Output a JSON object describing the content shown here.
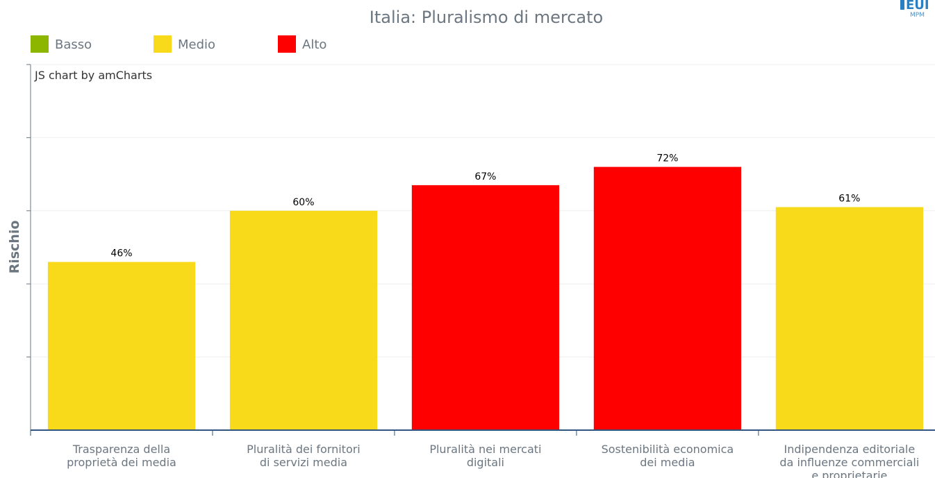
{
  "chart_data": {
    "type": "bar",
    "title": "Italia: Pluralismo di mercato",
    "ylabel": "Rischio",
    "xlabel": "",
    "ylim": [
      0,
      100
    ],
    "grid": true,
    "legend_position": "top-left",
    "legend": [
      {
        "label": "Basso",
        "color": "#8db600"
      },
      {
        "label": "Medio",
        "color": "#f9da1b"
      },
      {
        "label": "Alto",
        "color": "#ff0000"
      }
    ],
    "categories": [
      [
        "Trasparenza della",
        "proprietà dei media"
      ],
      [
        "Pluralità dei fornitori",
        "di servizi media"
      ],
      [
        "Pluralità nei mercati",
        "digitali"
      ],
      [
        "Sostenibilità economica",
        "dei media"
      ],
      [
        "Indipendenza editoriale",
        "da influenze commerciali",
        "e proprietarie"
      ]
    ],
    "values": [
      46,
      60,
      67,
      72,
      61
    ],
    "value_labels": [
      "46%",
      "60%",
      "67%",
      "72%",
      "61%"
    ],
    "risk_levels": [
      "Medio",
      "Medio",
      "Alto",
      "Alto",
      "Medio"
    ],
    "credit": "JS chart by amCharts"
  },
  "logo": {
    "text": "EUI",
    "sub": "MPM",
    "color": "#2a7fc2"
  }
}
